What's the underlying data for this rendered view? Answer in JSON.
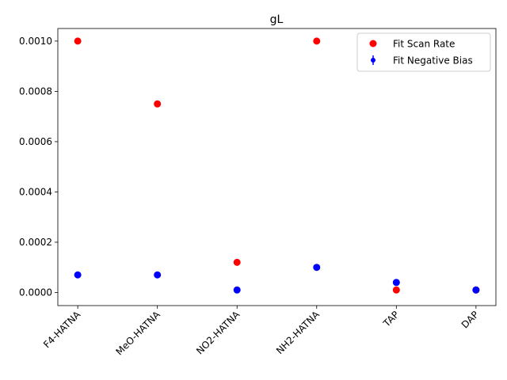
{
  "chart_data": {
    "type": "scatter",
    "title": "gL",
    "xlabel": "",
    "ylabel": "",
    "categories": [
      "F4-HATNA",
      "MeO-HATNA",
      "NO2-HATNA",
      "NH2-HATNA",
      "TAP",
      "DAP"
    ],
    "ylim": [
      -5.2e-05,
      0.00105
    ],
    "yticks": [
      0.0,
      0.0002,
      0.0004,
      0.0006,
      0.0008,
      0.001
    ],
    "ytick_labels": [
      "0.0000",
      "0.0002",
      "0.0004",
      "0.0006",
      "0.0008",
      "0.0010"
    ],
    "grid": false,
    "legend_position": "top-right",
    "series": [
      {
        "name": "Fit Scan Rate",
        "color": "#ff0000",
        "marker": "circle",
        "values": [
          0.001,
          0.00075,
          0.00012,
          0.001,
          1e-05,
          1e-05
        ]
      },
      {
        "name": "Fit Negative Bias",
        "color": "#0000ff",
        "marker": "circle-errorbar",
        "values": [
          7e-05,
          7e-05,
          1e-05,
          0.0001,
          4e-05,
          1e-05
        ]
      }
    ]
  }
}
